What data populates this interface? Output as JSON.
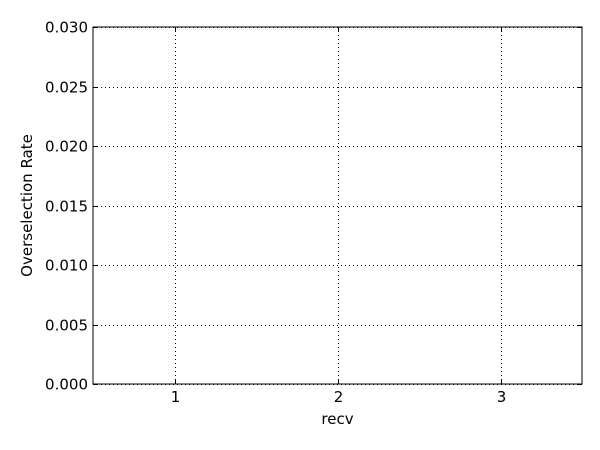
{
  "chart_data": {
    "type": "scatter",
    "title": "",
    "xlabel": "recv",
    "ylabel": "Overselection Rate",
    "x_ticks": [
      "1",
      "2",
      "3"
    ],
    "y_ticks": [
      "0.000",
      "0.005",
      "0.010",
      "0.015",
      "0.020",
      "0.025",
      "0.030"
    ],
    "xlim": [
      0.5,
      3.5
    ],
    "ylim": [
      0,
      0.03
    ],
    "grid": true,
    "grid_style": "dotted",
    "series": []
  }
}
